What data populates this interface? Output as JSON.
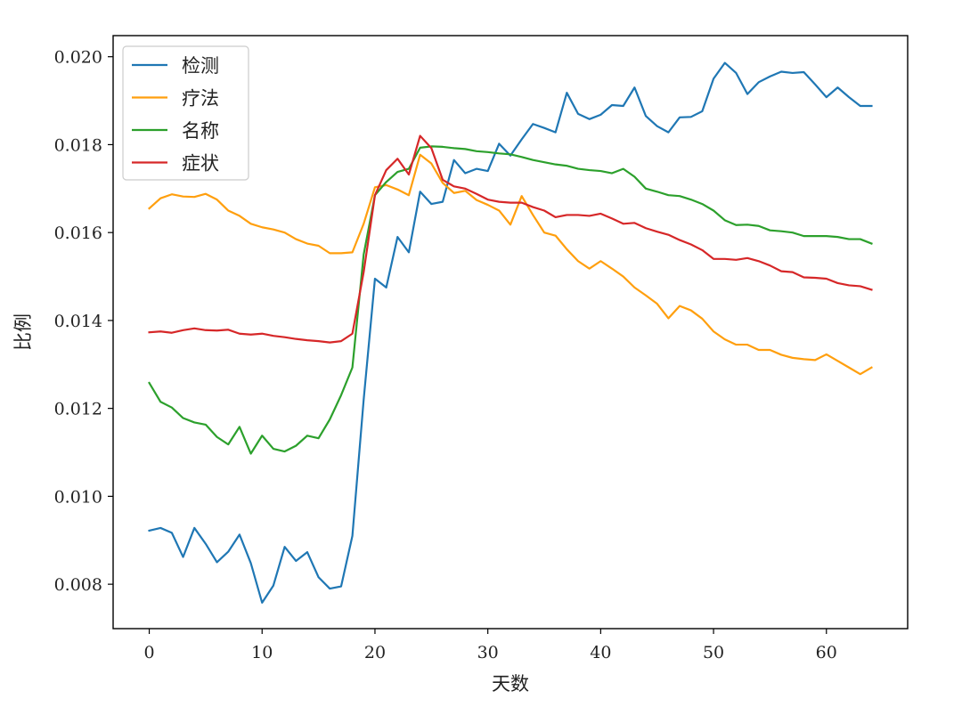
{
  "chart_data": {
    "type": "line",
    "title": "",
    "xlabel": "天数",
    "ylabel": "比例",
    "xlim": [
      -3.2,
      67.2
    ],
    "ylim": [
      0.00699,
      0.02048
    ],
    "xticks": [
      0,
      10,
      20,
      30,
      40,
      50,
      60
    ],
    "xtick_labels": [
      "0",
      "10",
      "20",
      "30",
      "40",
      "50",
      "60"
    ],
    "yticks": [
      0.008,
      0.01,
      0.012,
      0.014,
      0.016,
      0.018,
      0.02
    ],
    "ytick_labels": [
      "0.008",
      "0.010",
      "0.012",
      "0.014",
      "0.016",
      "0.018",
      "0.020"
    ],
    "grid": false,
    "legend_position": "upper-left",
    "x": [
      0,
      1,
      2,
      3,
      4,
      5,
      6,
      7,
      8,
      9,
      10,
      11,
      12,
      13,
      14,
      15,
      16,
      17,
      18,
      19,
      20,
      21,
      22,
      23,
      24,
      25,
      26,
      27,
      28,
      29,
      30,
      31,
      32,
      33,
      34,
      35,
      36,
      37,
      38,
      39,
      40,
      41,
      42,
      43,
      44,
      45,
      46,
      47,
      48,
      49,
      50,
      51,
      52,
      53,
      54,
      55,
      56,
      57,
      58,
      59,
      60,
      61,
      62,
      63,
      64
    ],
    "series": [
      {
        "name": "检测",
        "color": "#1f77b4",
        "values": [
          0.00922,
          0.00928,
          0.00917,
          0.00862,
          0.00928,
          0.00892,
          0.0085,
          0.00874,
          0.00913,
          0.00848,
          0.00758,
          0.00797,
          0.00885,
          0.00853,
          0.00873,
          0.00816,
          0.0079,
          0.00795,
          0.0091,
          0.0122,
          0.01495,
          0.01475,
          0.0159,
          0.01555,
          0.01693,
          0.01665,
          0.0167,
          0.01765,
          0.01735,
          0.01745,
          0.0174,
          0.01802,
          0.01775,
          0.01812,
          0.01847,
          0.01838,
          0.01828,
          0.01918,
          0.0187,
          0.01858,
          0.01868,
          0.0189,
          0.01888,
          0.0193,
          0.01865,
          0.01842,
          0.01828,
          0.01862,
          0.01863,
          0.01876,
          0.0195,
          0.01986,
          0.01963,
          0.01915,
          0.01942,
          0.01955,
          0.01966,
          0.01963,
          0.01965,
          0.01937,
          0.01908,
          0.0193,
          0.01908,
          0.01888,
          0.01888
        ]
      },
      {
        "name": "疗法",
        "color": "#ff9f0e",
        "values": [
          0.01655,
          0.01678,
          0.01687,
          0.01682,
          0.01681,
          0.01688,
          0.01675,
          0.0165,
          0.01638,
          0.0162,
          0.01612,
          0.01607,
          0.016,
          0.01585,
          0.01575,
          0.0157,
          0.01553,
          0.01553,
          0.01555,
          0.0162,
          0.01703,
          0.01708,
          0.01698,
          0.01685,
          0.01777,
          0.01757,
          0.01713,
          0.0169,
          0.01695,
          0.01674,
          0.01663,
          0.0165,
          0.01618,
          0.01683,
          0.0164,
          0.016,
          0.01593,
          0.01562,
          0.01535,
          0.01518,
          0.01535,
          0.01518,
          0.015,
          0.01475,
          0.01457,
          0.01438,
          0.01405,
          0.01433,
          0.01423,
          0.01404,
          0.01375,
          0.01357,
          0.01345,
          0.01345,
          0.01333,
          0.01333,
          0.01322,
          0.01315,
          0.01312,
          0.0131,
          0.01323,
          0.01308,
          0.01293,
          0.01278,
          0.01293
        ]
      },
      {
        "name": "名称",
        "color": "#2ca02c",
        "values": [
          0.01258,
          0.01215,
          0.01202,
          0.01178,
          0.01168,
          0.01163,
          0.01135,
          0.01118,
          0.01158,
          0.01097,
          0.01138,
          0.01108,
          0.01102,
          0.01115,
          0.01138,
          0.01132,
          0.01175,
          0.0123,
          0.01293,
          0.0155,
          0.01685,
          0.01715,
          0.01738,
          0.01745,
          0.01793,
          0.01796,
          0.01795,
          0.01792,
          0.0179,
          0.01785,
          0.01783,
          0.0178,
          0.01778,
          0.01772,
          0.01765,
          0.0176,
          0.01755,
          0.01752,
          0.01745,
          0.01742,
          0.0174,
          0.01735,
          0.01745,
          0.01727,
          0.017,
          0.01693,
          0.01685,
          0.01683,
          0.01675,
          0.01665,
          0.0165,
          0.01628,
          0.01617,
          0.01618,
          0.01615,
          0.01605,
          0.01603,
          0.016,
          0.01592,
          0.01592,
          0.01592,
          0.0159,
          0.01585,
          0.01585,
          0.01575
        ]
      },
      {
        "name": "症状",
        "color": "#d62728",
        "values": [
          0.01373,
          0.01375,
          0.01372,
          0.01378,
          0.01382,
          0.01378,
          0.01377,
          0.01379,
          0.0137,
          0.01368,
          0.0137,
          0.01365,
          0.01362,
          0.01358,
          0.01355,
          0.01353,
          0.0135,
          0.01353,
          0.0137,
          0.0151,
          0.01685,
          0.01742,
          0.01768,
          0.01732,
          0.0182,
          0.01792,
          0.0172,
          0.01705,
          0.017,
          0.01688,
          0.01675,
          0.0167,
          0.01668,
          0.01668,
          0.01658,
          0.0165,
          0.01635,
          0.0164,
          0.0164,
          0.01638,
          0.01643,
          0.01632,
          0.0162,
          0.01622,
          0.0161,
          0.01602,
          0.01595,
          0.01583,
          0.01573,
          0.0156,
          0.0154,
          0.0154,
          0.01538,
          0.01542,
          0.01535,
          0.01525,
          0.01512,
          0.0151,
          0.01498,
          0.01497,
          0.01495,
          0.01485,
          0.0148,
          0.01478,
          0.0147
        ]
      }
    ]
  }
}
